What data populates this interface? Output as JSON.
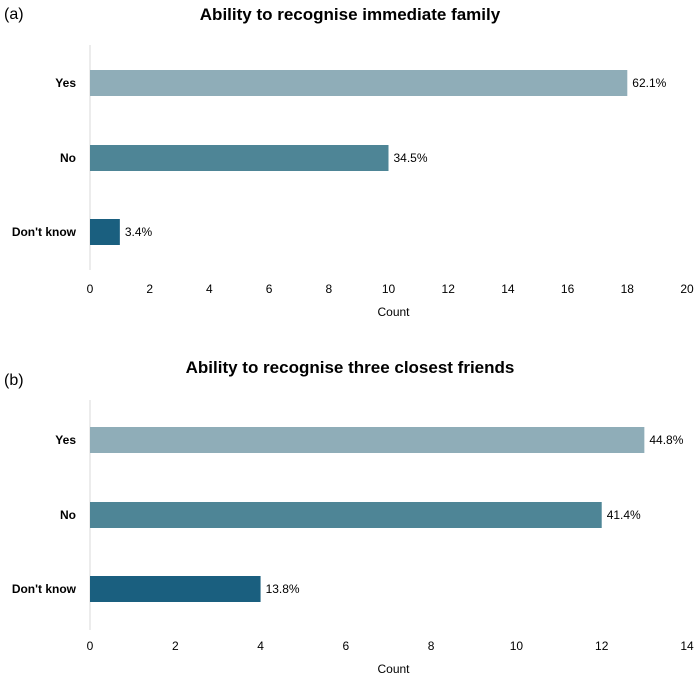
{
  "chart_data": [
    {
      "type": "bar",
      "panel": "(a)",
      "title": "Ability to recognise immediate family",
      "categories": [
        "Yes",
        "No",
        "Don't know"
      ],
      "values": [
        18,
        10,
        1
      ],
      "data_labels": [
        "62.1%",
        "34.5%",
        "3.4%"
      ],
      "colors": [
        "#8fadb8",
        "#4e8596",
        "#1a5f7f"
      ],
      "xlabel": "Count",
      "ylabel": "",
      "xlim": [
        0,
        20
      ],
      "ticks": [
        0,
        2,
        4,
        6,
        8,
        10,
        12,
        14,
        16,
        18,
        20
      ],
      "grid": false
    },
    {
      "type": "bar",
      "panel": "(b)",
      "title": "Ability to recognise three closest friends",
      "categories": [
        "Yes",
        "No",
        "Don't know"
      ],
      "values": [
        13,
        12,
        4
      ],
      "data_labels": [
        "44.8%",
        "41.4%",
        "13.8%"
      ],
      "colors": [
        "#8fadb8",
        "#4e8596",
        "#1a5f7f"
      ],
      "xlabel": "Count",
      "ylabel": "",
      "xlim": [
        0,
        14
      ],
      "ticks": [
        0,
        2,
        4,
        6,
        8,
        10,
        12,
        14
      ],
      "grid": false
    }
  ]
}
